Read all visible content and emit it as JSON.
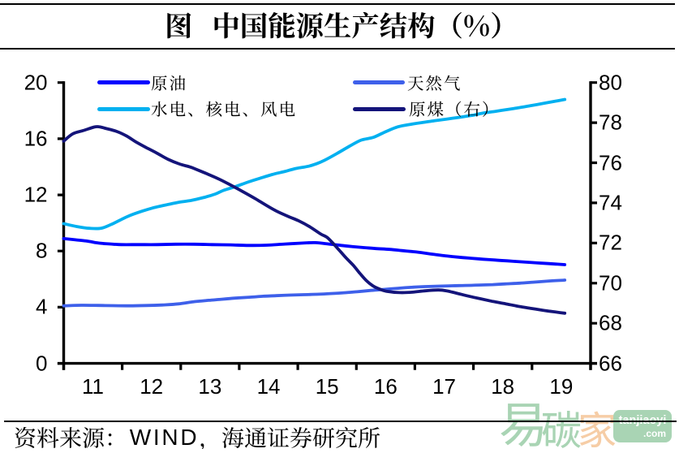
{
  "figure": {
    "title": "图 中国能源生产结构（%）",
    "source_note": "资料来源：WIND，海通证券研究所",
    "source_parts": {
      "prefix": "资料来源：",
      "latin": "WIND",
      "comma": "，",
      "suffix": "海通证券研究所"
    }
  },
  "watermark": {
    "text": "易碳家",
    "badge_line1": "tanjiaoyi",
    "badge_line2": ".com",
    "green": "#a9d4b4",
    "orange": "#f6cda6"
  },
  "chart_data": {
    "type": "line",
    "title": "图 中国能源生产结构（%）",
    "x_axis": {
      "labels": [
        "11",
        "12",
        "13",
        "14",
        "15",
        "16",
        "17",
        "18",
        "19"
      ],
      "label_positions": [
        11,
        12,
        13,
        14,
        15,
        16,
        17,
        18,
        19
      ],
      "range": [
        10.5,
        19.5
      ],
      "tick_positions": [
        10.5,
        11.5,
        12.5,
        13.5,
        14.5,
        15.5,
        16.5,
        17.5,
        18.5,
        19.5
      ]
    },
    "left_axis": {
      "min": 0,
      "max": 20,
      "ticks": [
        0,
        4,
        8,
        12,
        16,
        20
      ],
      "tick_labels": [
        "0",
        "4",
        "8",
        "12",
        "16",
        "20"
      ]
    },
    "right_axis": {
      "min": 66,
      "max": 80,
      "ticks": [
        66,
        68,
        70,
        72,
        74,
        76,
        78,
        80
      ],
      "tick_labels": [
        "66",
        "68",
        "70",
        "72",
        "74",
        "76",
        "78",
        "80"
      ]
    },
    "grid": false,
    "legend_position": "top-inside",
    "series": [
      {
        "name": "原油",
        "slug": "crude-oil",
        "axis": "left",
        "color": "#0000fe",
        "points": [
          [
            10.5,
            8.89
          ],
          [
            10.7,
            8.8
          ],
          [
            10.88,
            8.72
          ],
          [
            11.05,
            8.6
          ],
          [
            11.17,
            8.54
          ],
          [
            11.35,
            8.49
          ],
          [
            11.48,
            8.46
          ],
          [
            11.78,
            8.46
          ],
          [
            12.1,
            8.46
          ],
          [
            12.41,
            8.49
          ],
          [
            12.73,
            8.49
          ],
          [
            13.03,
            8.46
          ],
          [
            13.35,
            8.44
          ],
          [
            13.66,
            8.4
          ],
          [
            13.97,
            8.42
          ],
          [
            14.28,
            8.5
          ],
          [
            14.59,
            8.57
          ],
          [
            14.8,
            8.6
          ],
          [
            15.03,
            8.5
          ],
          [
            15.24,
            8.4
          ],
          [
            15.45,
            8.31
          ],
          [
            15.65,
            8.24
          ],
          [
            15.86,
            8.17
          ],
          [
            16.07,
            8.12
          ],
          [
            16.28,
            8.03
          ],
          [
            16.49,
            7.95
          ],
          [
            16.62,
            7.88
          ],
          [
            16.83,
            7.76
          ],
          [
            17.04,
            7.65
          ],
          [
            17.25,
            7.56
          ],
          [
            17.46,
            7.49
          ],
          [
            17.66,
            7.42
          ],
          [
            17.87,
            7.36
          ],
          [
            18.08,
            7.3
          ],
          [
            18.29,
            7.24
          ],
          [
            18.5,
            7.18
          ],
          [
            18.7,
            7.13
          ],
          [
            18.91,
            7.07
          ],
          [
            19.06,
            7.03
          ]
        ]
      },
      {
        "name": "水电、核电、风电",
        "slug": "hydro-nuclear-wind",
        "axis": "left",
        "color": "#00b0f0",
        "points": [
          [
            10.5,
            9.95
          ],
          [
            10.73,
            9.74
          ],
          [
            10.94,
            9.62
          ],
          [
            11.15,
            9.63
          ],
          [
            11.35,
            9.97
          ],
          [
            11.49,
            10.26
          ],
          [
            11.63,
            10.53
          ],
          [
            11.84,
            10.84
          ],
          [
            12.05,
            11.1
          ],
          [
            12.26,
            11.3
          ],
          [
            12.46,
            11.47
          ],
          [
            12.67,
            11.6
          ],
          [
            12.88,
            11.8
          ],
          [
            13.09,
            12.06
          ],
          [
            13.23,
            12.32
          ],
          [
            13.43,
            12.58
          ],
          [
            13.64,
            12.9
          ],
          [
            13.85,
            13.18
          ],
          [
            14.06,
            13.45
          ],
          [
            14.27,
            13.66
          ],
          [
            14.47,
            13.88
          ],
          [
            14.68,
            14.04
          ],
          [
            14.82,
            14.22
          ],
          [
            14.96,
            14.47
          ],
          [
            15.17,
            14.95
          ],
          [
            15.38,
            15.46
          ],
          [
            15.58,
            15.9
          ],
          [
            15.79,
            16.1
          ],
          [
            16.0,
            16.5
          ],
          [
            16.21,
            16.85
          ],
          [
            16.42,
            17.02
          ],
          [
            16.62,
            17.15
          ],
          [
            16.83,
            17.28
          ],
          [
            17.04,
            17.4
          ],
          [
            17.25,
            17.52
          ],
          [
            17.46,
            17.65
          ],
          [
            17.66,
            17.82
          ],
          [
            17.87,
            17.95
          ],
          [
            18.08,
            18.08
          ],
          [
            18.29,
            18.22
          ],
          [
            18.5,
            18.37
          ],
          [
            18.7,
            18.52
          ],
          [
            18.91,
            18.68
          ],
          [
            19.06,
            18.8
          ]
        ]
      },
      {
        "name": "天然气",
        "slug": "natural-gas",
        "axis": "left",
        "color": "#3e60ea",
        "points": [
          [
            10.5,
            4.1
          ],
          [
            10.8,
            4.14
          ],
          [
            11.08,
            4.13
          ],
          [
            11.35,
            4.11
          ],
          [
            11.63,
            4.1
          ],
          [
            11.91,
            4.12
          ],
          [
            12.19,
            4.16
          ],
          [
            12.46,
            4.24
          ],
          [
            12.74,
            4.4
          ],
          [
            12.98,
            4.49
          ],
          [
            13.2,
            4.57
          ],
          [
            13.43,
            4.65
          ],
          [
            13.67,
            4.71
          ],
          [
            13.91,
            4.78
          ],
          [
            14.13,
            4.82
          ],
          [
            14.36,
            4.86
          ],
          [
            14.59,
            4.89
          ],
          [
            14.82,
            4.92
          ],
          [
            15.06,
            4.97
          ],
          [
            15.29,
            5.03
          ],
          [
            15.51,
            5.1
          ],
          [
            15.75,
            5.2
          ],
          [
            15.97,
            5.27
          ],
          [
            16.21,
            5.35
          ],
          [
            16.44,
            5.42
          ],
          [
            16.68,
            5.47
          ],
          [
            16.9,
            5.5
          ],
          [
            17.14,
            5.53
          ],
          [
            17.36,
            5.55
          ],
          [
            17.6,
            5.58
          ],
          [
            17.83,
            5.61
          ],
          [
            18.05,
            5.66
          ],
          [
            18.29,
            5.71
          ],
          [
            18.52,
            5.78
          ],
          [
            18.75,
            5.85
          ],
          [
            18.98,
            5.91
          ],
          [
            19.06,
            5.93
          ]
        ]
      },
      {
        "name": "原煤（右）",
        "slug": "raw-coal",
        "axis": "right",
        "color": "#14147a",
        "points": [
          [
            10.5,
            77.08
          ],
          [
            10.66,
            77.45
          ],
          [
            10.85,
            77.62
          ],
          [
            11.02,
            77.78
          ],
          [
            11.1,
            77.8
          ],
          [
            11.21,
            77.72
          ],
          [
            11.41,
            77.56
          ],
          [
            11.58,
            77.33
          ],
          [
            11.73,
            77.05
          ],
          [
            11.91,
            76.76
          ],
          [
            12.1,
            76.47
          ],
          [
            12.28,
            76.18
          ],
          [
            12.48,
            75.94
          ],
          [
            12.66,
            75.79
          ],
          [
            12.74,
            75.7
          ],
          [
            12.95,
            75.45
          ],
          [
            13.16,
            75.18
          ],
          [
            13.36,
            74.88
          ],
          [
            13.57,
            74.55
          ],
          [
            13.78,
            74.2
          ],
          [
            13.95,
            73.9
          ],
          [
            14.13,
            73.6
          ],
          [
            14.34,
            73.32
          ],
          [
            14.52,
            73.1
          ],
          [
            14.71,
            72.8
          ],
          [
            14.89,
            72.45
          ],
          [
            15.0,
            72.28
          ],
          [
            15.11,
            71.96
          ],
          [
            15.22,
            71.6
          ],
          [
            15.33,
            71.24
          ],
          [
            15.45,
            70.88
          ],
          [
            15.56,
            70.49
          ],
          [
            15.67,
            70.13
          ],
          [
            15.78,
            69.87
          ],
          [
            15.9,
            69.7
          ],
          [
            16.01,
            69.6
          ],
          [
            16.24,
            69.53
          ],
          [
            16.46,
            69.55
          ],
          [
            16.68,
            69.62
          ],
          [
            16.9,
            69.66
          ],
          [
            17.04,
            69.62
          ],
          [
            17.21,
            69.5
          ],
          [
            17.42,
            69.35
          ],
          [
            17.62,
            69.22
          ],
          [
            17.83,
            69.09
          ],
          [
            18.05,
            68.97
          ],
          [
            18.26,
            68.85
          ],
          [
            18.47,
            68.75
          ],
          [
            18.68,
            68.65
          ],
          [
            18.9,
            68.56
          ],
          [
            19.06,
            68.5
          ]
        ]
      }
    ],
    "source_note": "资料来源：WIND，海通证券研究所"
  }
}
